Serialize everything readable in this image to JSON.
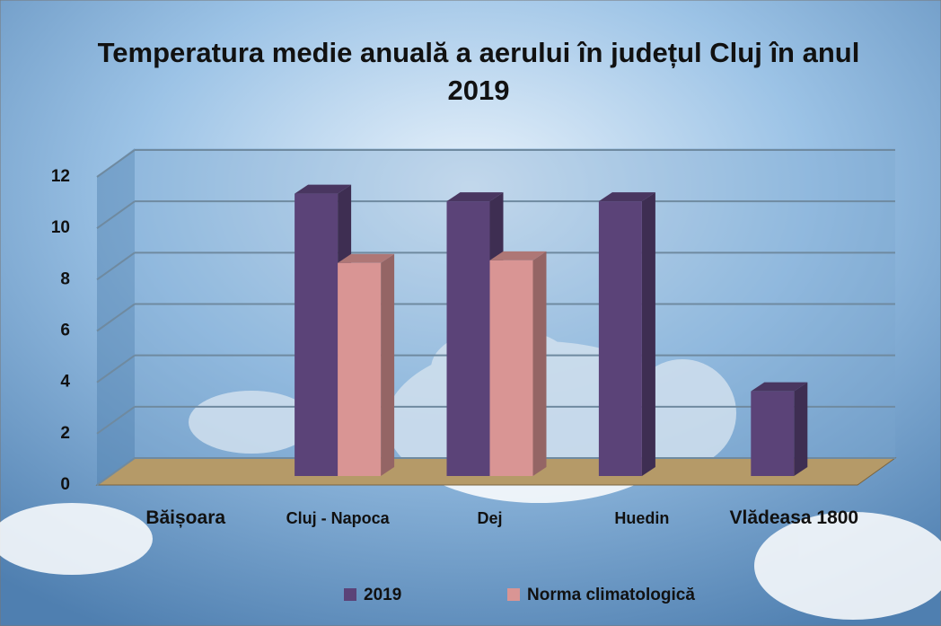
{
  "chart_data": {
    "type": "bar3d",
    "title": "Temperatura medie anuală a aerului în județul Cluj în anul 2019",
    "categories": [
      "Băișoara",
      "Cluj - Napoca",
      "Dej",
      "Huedin",
      "Vlădeasa 1800"
    ],
    "series": [
      {
        "name": "2019",
        "color": "#5b4378",
        "values": [
          null,
          11.0,
          10.7,
          10.7,
          3.3
        ]
      },
      {
        "name": "Norma climatologică",
        "color": "#d99594",
        "values": [
          null,
          8.3,
          8.4,
          null,
          null
        ]
      }
    ],
    "ylim": [
      0,
      12
    ],
    "yticks": [
      0,
      2,
      4,
      6,
      8,
      10,
      12
    ],
    "grid": true,
    "legend": "bottom"
  }
}
